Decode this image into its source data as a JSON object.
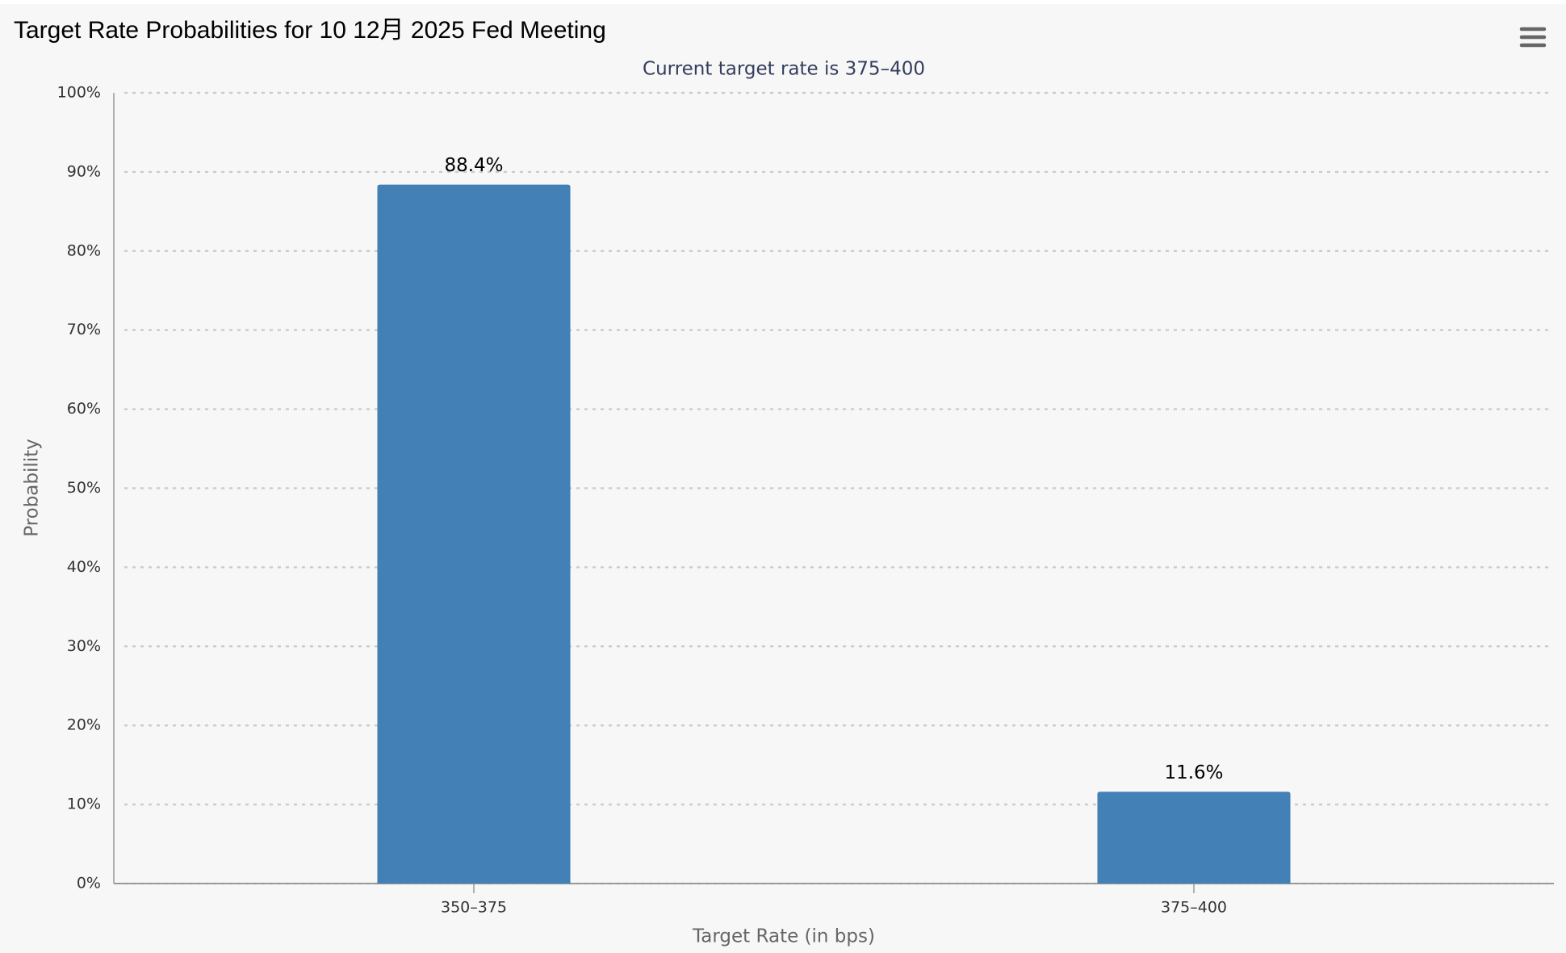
{
  "chart_data": {
    "type": "bar",
    "title": "Target Rate Probabilities for 10 12月 2025 Fed Meeting",
    "subtitle": "Current target rate is 375–400",
    "x_label": "Target Rate (in bps)",
    "y_label": "Probability",
    "categories": [
      "350–375",
      "375–400"
    ],
    "values": [
      88.4,
      11.6
    ],
    "value_labels": [
      "88.4%",
      "11.6%"
    ],
    "color": "#4380b6",
    "ylim": [
      0,
      100
    ],
    "yticks": [
      {
        "value": 0,
        "label": "0%"
      },
      {
        "value": 10,
        "label": "10%"
      },
      {
        "value": 20,
        "label": "20%"
      },
      {
        "value": 30,
        "label": "30%"
      },
      {
        "value": 40,
        "label": "40%"
      },
      {
        "value": 50,
        "label": "50%"
      },
      {
        "value": 60,
        "label": "60%"
      },
      {
        "value": 70,
        "label": "70%"
      },
      {
        "value": 80,
        "label": "80%"
      },
      {
        "value": 90,
        "label": "90%"
      },
      {
        "value": 100,
        "label": "100%"
      }
    ],
    "grid": true
  }
}
